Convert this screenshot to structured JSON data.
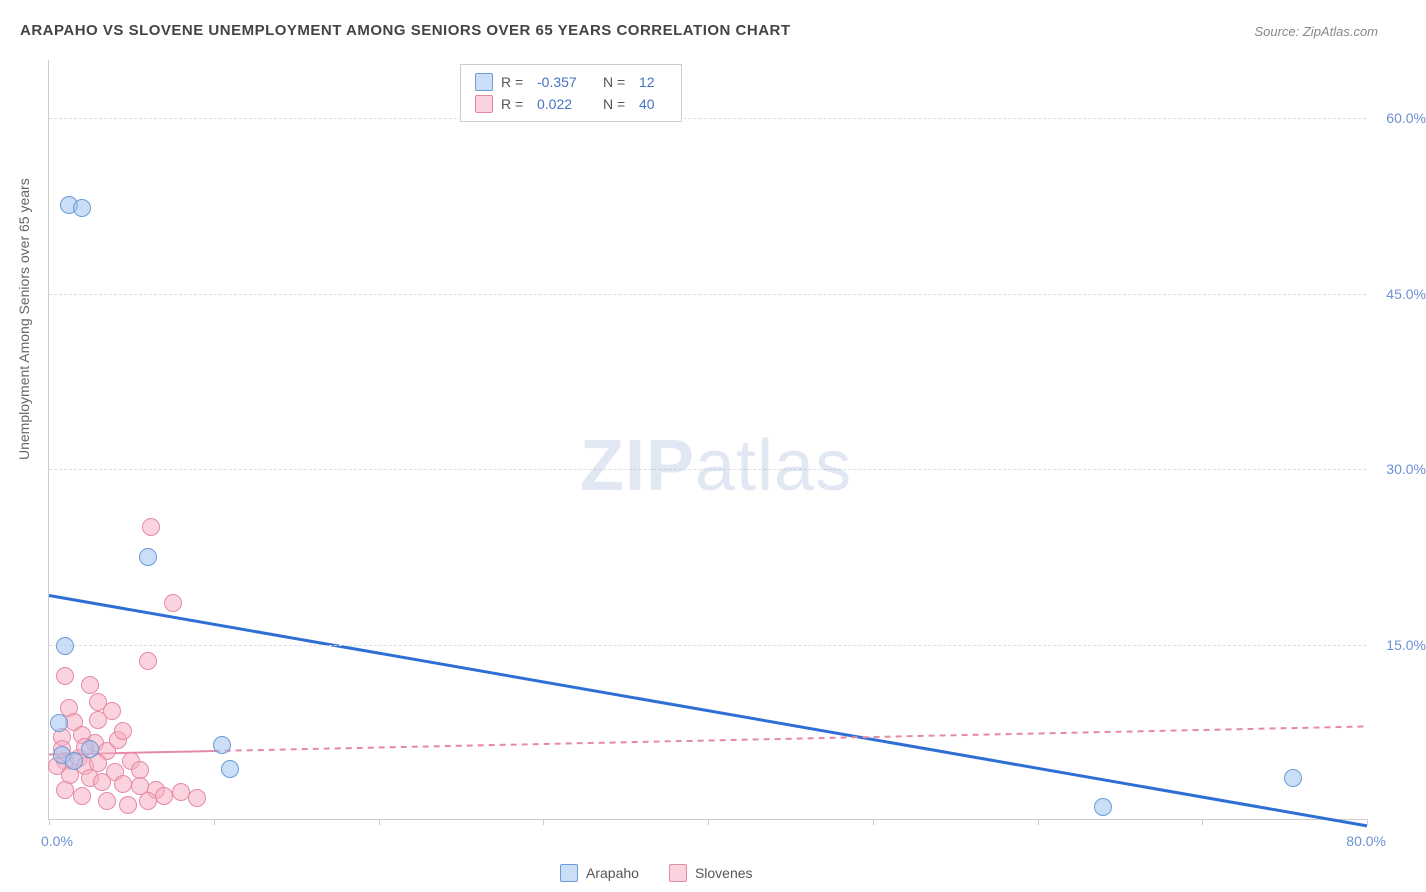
{
  "title": "ARAPAHO VS SLOVENE UNEMPLOYMENT AMONG SENIORS OVER 65 YEARS CORRELATION CHART",
  "source": "Source: ZipAtlas.com",
  "ylabel": "Unemployment Among Seniors over 65 years",
  "watermark_a": "ZIP",
  "watermark_b": "atlas",
  "chart": {
    "type": "scatter_with_regression",
    "background_color": "#ffffff",
    "grid_color": "#dddddd",
    "border_color": "#cccccc",
    "xlim": [
      0,
      80
    ],
    "ylim": [
      0,
      65
    ],
    "xticks": [
      0,
      10,
      20,
      30,
      40,
      50,
      60,
      70,
      80
    ],
    "xtick_labels": {
      "0": "0.0%",
      "80": "80.0%"
    },
    "yticks": [
      15,
      30,
      45,
      60
    ],
    "ytick_labels": {
      "15": "15.0%",
      "30": "30.0%",
      "45": "45.0%",
      "60": "60.0%"
    },
    "axis_label_color": "#6b8fd4",
    "axis_label_fontsize": 14,
    "point_radius": 9,
    "point_border_width": 1.5,
    "series": [
      {
        "name": "Arapaho",
        "fill": "rgba(160,195,240,0.55)",
        "stroke": "#6b9bd8",
        "reg_color": "#2e6fd6",
        "reg_width": 3,
        "reg_dash": "none",
        "r": "-0.357",
        "n": "12",
        "reg_line": [
          [
            0,
            19.2
          ],
          [
            80,
            -0.5
          ]
        ],
        "points": [
          [
            1.2,
            52.5
          ],
          [
            2.0,
            52.3
          ],
          [
            1.0,
            14.8
          ],
          [
            0.6,
            8.2
          ],
          [
            6.0,
            22.4
          ],
          [
            10.5,
            6.3
          ],
          [
            11.0,
            4.3
          ],
          [
            0.8,
            5.5
          ],
          [
            1.5,
            5.0
          ],
          [
            64.0,
            1.0
          ],
          [
            75.5,
            3.5
          ],
          [
            2.5,
            6.0
          ]
        ]
      },
      {
        "name": "Slovenes",
        "fill": "rgba(245,175,195,0.55)",
        "stroke": "#e58aa5",
        "reg_color": "#e58aa5",
        "reg_width": 2,
        "reg_dash": "6,5",
        "r": " 0.022",
        "n": "40",
        "reg_line": [
          [
            0,
            5.6
          ],
          [
            80,
            8.0
          ]
        ],
        "reg_solid_until": 10,
        "points": [
          [
            6.2,
            25.0
          ],
          [
            6.0,
            13.5
          ],
          [
            7.5,
            18.5
          ],
          [
            1.0,
            12.2
          ],
          [
            2.5,
            11.5
          ],
          [
            3.0,
            10.0
          ],
          [
            1.2,
            9.5
          ],
          [
            3.8,
            9.2
          ],
          [
            0.8,
            7.0
          ],
          [
            1.5,
            8.3
          ],
          [
            2.0,
            7.2
          ],
          [
            2.8,
            6.5
          ],
          [
            3.5,
            5.8
          ],
          [
            4.2,
            6.8
          ],
          [
            1.0,
            5.0
          ],
          [
            1.8,
            5.2
          ],
          [
            2.2,
            4.5
          ],
          [
            3.0,
            4.8
          ],
          [
            4.0,
            4.0
          ],
          [
            5.0,
            5.0
          ],
          [
            0.5,
            4.5
          ],
          [
            1.3,
            3.8
          ],
          [
            2.5,
            3.5
          ],
          [
            3.2,
            3.2
          ],
          [
            4.5,
            3.0
          ],
          [
            5.5,
            2.8
          ],
          [
            6.5,
            2.5
          ],
          [
            7.0,
            2.0
          ],
          [
            8.0,
            2.3
          ],
          [
            9.0,
            1.8
          ],
          [
            1.0,
            2.5
          ],
          [
            2.0,
            2.0
          ],
          [
            3.5,
            1.5
          ],
          [
            4.8,
            1.2
          ],
          [
            6.0,
            1.5
          ],
          [
            3.0,
            8.5
          ],
          [
            4.5,
            7.5
          ],
          [
            0.8,
            6.0
          ],
          [
            2.2,
            6.2
          ],
          [
            5.5,
            4.2
          ]
        ]
      }
    ],
    "legend_bottom": [
      "Arapaho",
      "Slovenes"
    ]
  }
}
